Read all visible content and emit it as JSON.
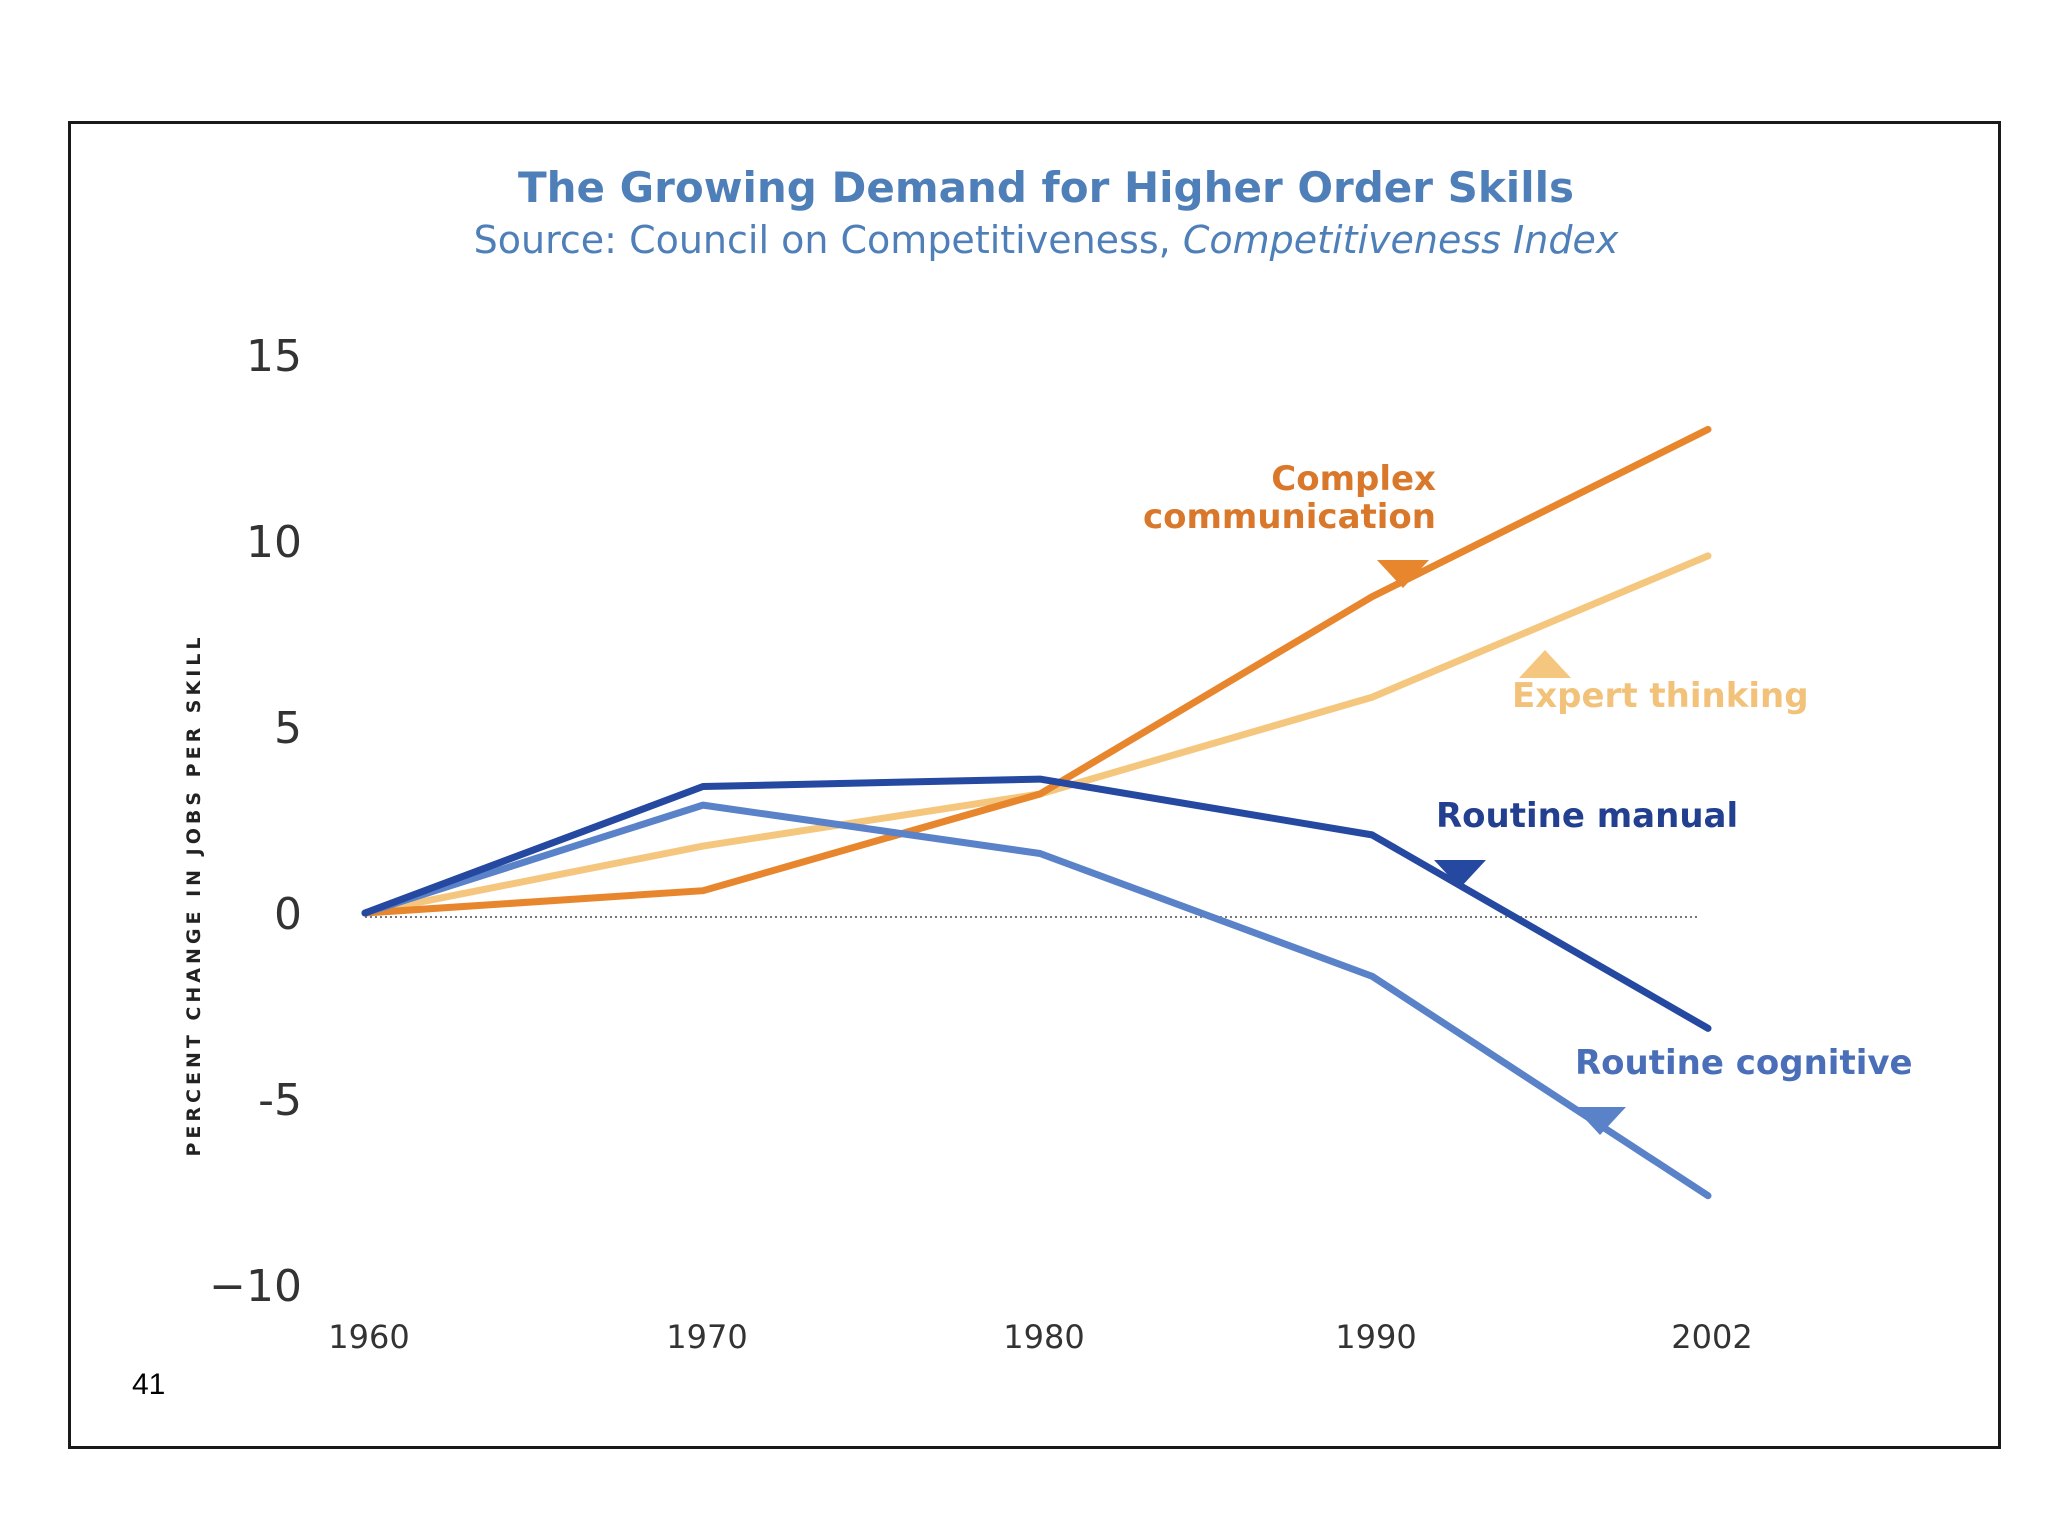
{
  "slide": {
    "page_number": "41"
  },
  "chart_data": {
    "type": "line",
    "title": "The Growing Demand for Higher Order Skills",
    "subtitle_prefix": "Source: Council on Competitiveness, ",
    "subtitle_italic": "Competitiveness Index",
    "ylabel": "PERCENT CHANGE IN JOBS PER SKILL",
    "xlabel": "",
    "categories": [
      "1960",
      "1970",
      "1980",
      "1990",
      "2002"
    ],
    "yticks": [
      15,
      10,
      5,
      0,
      -5,
      -10
    ],
    "ytick_labels": [
      "15",
      "10",
      "5",
      "0",
      "-5",
      "−10"
    ],
    "ylim": [
      -10,
      15
    ],
    "zero_line": "dotted",
    "grid": false,
    "series": [
      {
        "name": "Complex communication",
        "values": [
          0,
          0.6,
          3.2,
          8.5,
          13.0
        ],
        "color": "#e8862e",
        "label_lines": [
          "Complex",
          "communication"
        ],
        "marker": "triangle-down",
        "label_color": "#d9782a"
      },
      {
        "name": "Expert thinking",
        "values": [
          0,
          1.8,
          3.2,
          5.8,
          9.6
        ],
        "color": "#f5c77e",
        "label_lines": [
          "Expert thinking"
        ],
        "marker": "triangle-up",
        "label_color": "#f2c27a"
      },
      {
        "name": "Routine manual",
        "values": [
          0,
          3.4,
          3.6,
          2.1,
          -3.1
        ],
        "color": "#2548a0",
        "label_lines": [
          "Routine manual"
        ],
        "marker": "triangle-down",
        "label_color": "#233f8f"
      },
      {
        "name": "Routine cognitive",
        "values": [
          0,
          2.9,
          1.6,
          -1.7,
          -7.6
        ],
        "color": "#5a82c8",
        "label_lines": [
          "Routine cognitive"
        ],
        "marker": "triangle-down",
        "label_color": "#4a6fb8"
      }
    ]
  }
}
